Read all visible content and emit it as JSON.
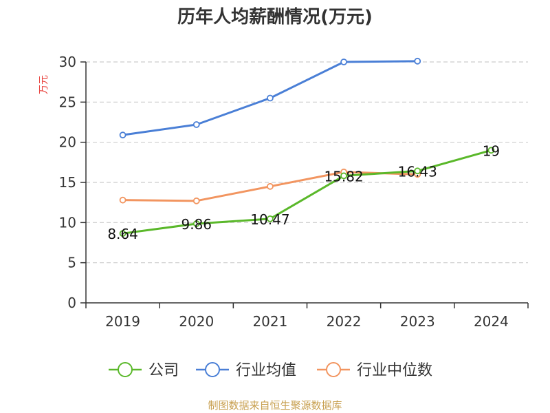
{
  "chart_data": {
    "type": "line",
    "title": "历年人均薪酬情况(万元)",
    "ylabel": "万元",
    "categories": [
      "2019",
      "2020",
      "2021",
      "2022",
      "2023",
      "2024"
    ],
    "ylim": [
      0,
      30
    ],
    "yticks": [
      0,
      5,
      10,
      15,
      20,
      25,
      30
    ],
    "grid": true,
    "legend_position": "bottom",
    "series": [
      {
        "name": "公司",
        "color": "#5ab82a",
        "values": [
          8.64,
          9.86,
          10.47,
          15.82,
          16.43,
          19
        ],
        "data_labels": [
          "8.64",
          "9.86",
          "10.47",
          "15.82",
          "16.43",
          "19"
        ]
      },
      {
        "name": "行业均值",
        "color": "#4a7fd6",
        "values": [
          20.9,
          22.2,
          25.5,
          30.0,
          30.1,
          null
        ]
      },
      {
        "name": "行业中位数",
        "color": "#f29560",
        "values": [
          12.8,
          12.7,
          14.5,
          16.3,
          16.0,
          null
        ]
      }
    ]
  },
  "colors": {
    "axis": "#333333",
    "grid": "#cccccc",
    "ylabel": "#e8413c",
    "source": "#c8a050"
  },
  "source_text": "制图数据来自恒生聚源数据库"
}
